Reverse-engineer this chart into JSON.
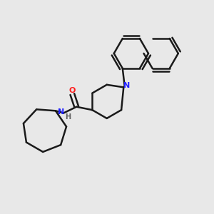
{
  "background_color": "#e8e8e8",
  "bond_color": "#1a1a1a",
  "bond_width": 1.8,
  "N_color": "#2020ff",
  "O_color": "#ff2020",
  "H_color": "#606060",
  "figsize": [
    3.0,
    3.0
  ],
  "dpi": 100,
  "xlim": [
    0.0,
    1.0
  ],
  "ylim": [
    0.0,
    1.0
  ]
}
